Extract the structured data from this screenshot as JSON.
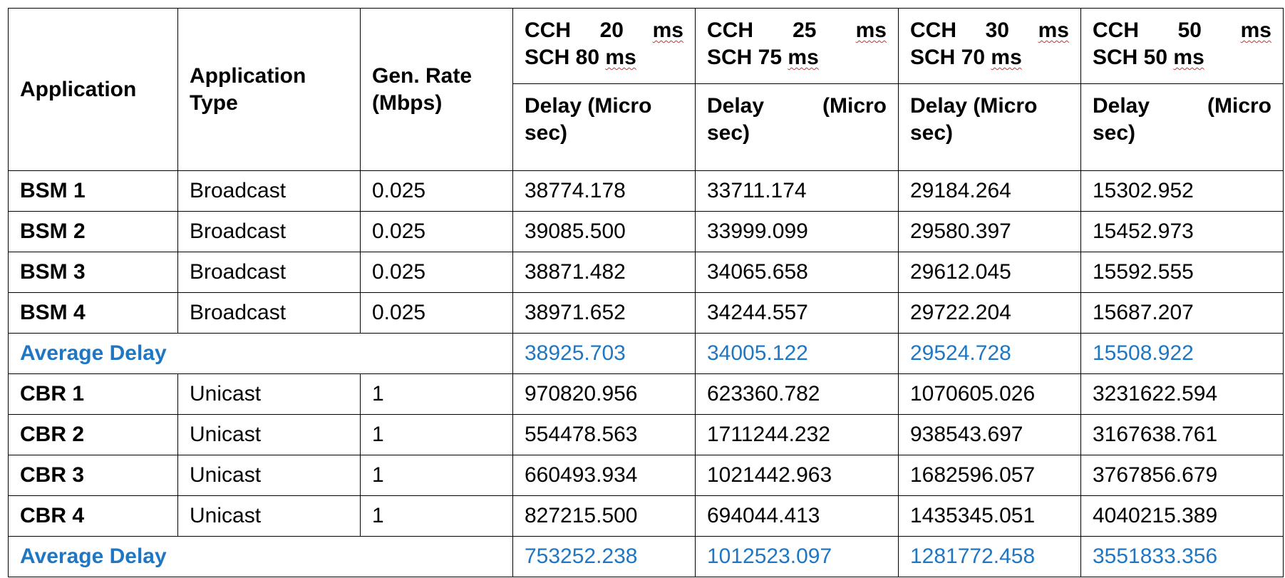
{
  "headers": {
    "application": "Application",
    "application_type": "Application Type",
    "gen_rate": "Gen. Rate (Mbps)",
    "scenarios": [
      {
        "line1": [
          "CCH",
          "20",
          "ms"
        ],
        "line2_a": "SCH 80 ",
        "line2_b": "ms",
        "delay": [
          "Delay (Micro",
          "sec)"
        ]
      },
      {
        "line1": [
          "CCH",
          "25",
          "ms"
        ],
        "line2_a": "SCH 75 ",
        "line2_b": "ms",
        "delay": [
          "Delay",
          "(Micro",
          "sec)"
        ]
      },
      {
        "line1": [
          "CCH",
          "30",
          "ms"
        ],
        "line2_a": "SCH 70 ",
        "line2_b": "ms",
        "delay": [
          "Delay (Micro",
          "sec)"
        ]
      },
      {
        "line1": [
          "CCH",
          "50",
          "ms"
        ],
        "line2_a": "SCH 50 ",
        "line2_b": "ms",
        "delay": [
          "Delay",
          "(Micro",
          "sec)"
        ]
      }
    ]
  },
  "rows": [
    {
      "app": "BSM 1",
      "type": "Broadcast",
      "rate": "0.025",
      "delays": [
        "38774.178",
        "33711.174",
        "29184.264",
        "15302.952"
      ]
    },
    {
      "app": "BSM 2",
      "type": "Broadcast",
      "rate": "0.025",
      "delays": [
        "39085.500",
        "33999.099",
        "29580.397",
        "15452.973"
      ]
    },
    {
      "app": "BSM 3",
      "type": "Broadcast",
      "rate": "0.025",
      "delays": [
        "38871.482",
        "34065.658",
        "29612.045",
        "15592.555"
      ]
    },
    {
      "app": "BSM 4",
      "type": "Broadcast",
      "rate": "0.025",
      "delays": [
        "38971.652",
        "34244.557",
        "29722.204",
        "15687.207"
      ]
    },
    {
      "avg_label": "Average Delay",
      "delays": [
        "38925.703",
        "34005.122",
        "29524.728",
        "15508.922"
      ]
    },
    {
      "app": "CBR 1",
      "type": "Unicast",
      "rate": "1",
      "delays": [
        "970820.956",
        "623360.782",
        "1070605.026",
        "3231622.594"
      ]
    },
    {
      "app": "CBR 2",
      "type": "Unicast",
      "rate": "1",
      "delays": [
        "554478.563",
        "1711244.232",
        "938543.697",
        "3167638.761"
      ]
    },
    {
      "app": "CBR 3",
      "type": "Unicast",
      "rate": "1",
      "delays": [
        "660493.934",
        "1021442.963",
        "1682596.057",
        "3767856.679"
      ]
    },
    {
      "app": "CBR 4",
      "type": "Unicast",
      "rate": "1",
      "delays": [
        "827215.500",
        "694044.413",
        "1435345.051",
        "4040215.389"
      ]
    },
    {
      "avg_label": "Average Delay",
      "delays": [
        "753252.238",
        "1012523.097",
        "1281772.458",
        "3551833.356"
      ]
    }
  ],
  "colors": {
    "average_text": "#1f77c4",
    "spellcheck_underline": "#d03030",
    "border": "#000000"
  }
}
